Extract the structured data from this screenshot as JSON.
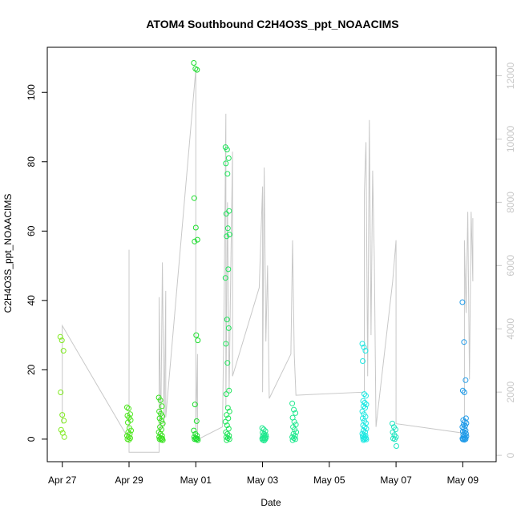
{
  "chart_data": {
    "type": "scatter",
    "title": "ATOM4 Southbound C2H4O3S_ppt_NOAACIMS",
    "xlabel": "Date",
    "ylabel": "C2H4O3S_ppt_NOAACIMS",
    "x_ticks": [
      "Apr 27",
      "Apr 29",
      "May 01",
      "May 03",
      "May 05",
      "May 07",
      "May 09"
    ],
    "x_tick_days": [
      0,
      2,
      4,
      6,
      8,
      10,
      12
    ],
    "xlim_days": [
      -0.45,
      13.0
    ],
    "ylim": [
      -6.5,
      113
    ],
    "y_ticks": [
      0,
      20,
      40,
      60,
      80,
      100
    ],
    "y2_ticks": [
      0,
      2000,
      4000,
      6000,
      8000,
      10000,
      12000
    ],
    "y2lim": [
      -200,
      12900
    ],
    "grid": false,
    "colors": {
      "altitude_line": "#c8c8c8",
      "frame": "#000000",
      "right_axis": "#c8c8c8",
      "flight_colors": [
        "#7fea1e",
        "#4ee61e",
        "#38e21e",
        "#1ede2e",
        "#1ee45a",
        "#1ee88e",
        "#1ee4c0",
        "#1ee8e2",
        "#1e9ae8"
      ]
    },
    "flights": [
      {
        "center_day": 0.0,
        "color_index": 0,
        "values": [
          29.5,
          28.5,
          25.5,
          13.5,
          7.0,
          5.3,
          2.7,
          1.8,
          0.6
        ]
      },
      {
        "center_day": 2.0,
        "color_index": 1,
        "values": [
          9.2,
          8.8,
          7.2,
          6.8,
          6.2,
          5.5,
          4.8,
          3.2,
          2.5,
          2.0,
          1.5,
          1.0,
          0.6,
          0.3,
          0.0,
          -0.2
        ]
      },
      {
        "center_day": 2.95,
        "color_index": 2,
        "values": [
          12.0,
          11.2,
          9.5,
          8.0,
          7.3,
          6.6,
          6.0,
          5.2,
          4.5,
          3.5,
          2.8,
          2.0,
          1.5,
          1.0,
          0.6,
          0.3,
          0.1,
          0.0,
          -0.2,
          -0.3
        ]
      },
      {
        "center_day": 4.0,
        "color_index": 3,
        "values": [
          108.5,
          106.8,
          106.5,
          69.5,
          61.0,
          57.5,
          57.0,
          30.0,
          28.5,
          10.0,
          5.2,
          2.5,
          1.5,
          1.0,
          0.6,
          0.3,
          0.1,
          0.0,
          -0.1,
          -0.3
        ]
      },
      {
        "center_day": 4.95,
        "color_index": 4,
        "values": [
          84.2,
          83.5,
          81.0,
          79.5,
          76.5,
          65.8,
          65.0,
          60.8,
          59.0,
          58.5,
          49.0,
          46.5,
          34.5,
          32.0,
          27.5,
          22.0,
          14.0,
          13.0,
          9.0,
          8.0,
          7.0,
          6.0,
          5.0,
          4.0,
          3.0,
          2.0,
          1.5,
          1.0,
          0.6,
          0.3,
          0.0,
          -0.3
        ]
      },
      {
        "center_day": 6.05,
        "color_index": 5,
        "values": [
          3.2,
          2.8,
          2.3,
          1.9,
          1.5,
          1.2,
          1.0,
          0.8,
          0.6,
          0.4,
          0.3,
          0.2,
          0.1,
          0.0,
          -0.2,
          -0.4
        ]
      },
      {
        "center_day": 6.95,
        "color_index": 5,
        "values": [
          10.3,
          8.5,
          7.5,
          6.2,
          5.0,
          4.2,
          3.5,
          2.8,
          2.0,
          1.5,
          1.0,
          0.6,
          0.3,
          0.0,
          -0.3
        ]
      },
      {
        "center_day": 9.05,
        "color_index": 7,
        "values": [
          27.5,
          26.5,
          25.5,
          22.5,
          13.0,
          12.5,
          11.0,
          10.5,
          10.0,
          9.5,
          9.0,
          8.0,
          7.2,
          6.5,
          6.0,
          5.2,
          4.6,
          4.0,
          3.5,
          3.0,
          2.5,
          2.0,
          1.6,
          1.2,
          1.0,
          0.8,
          0.5,
          0.3,
          0.1,
          0.0,
          -0.1,
          -0.3
        ]
      },
      {
        "center_day": 9.95,
        "color_index": 6,
        "values": [
          4.5,
          3.5,
          2.8,
          2.0,
          1.2,
          0.6,
          0.2,
          0.0,
          -2.0
        ]
      },
      {
        "center_day": 12.05,
        "color_index": 8,
        "values": [
          39.5,
          28.0,
          17.0,
          14.0,
          13.5,
          6.0,
          5.5,
          5.0,
          4.6,
          4.2,
          3.8,
          3.5,
          3.0,
          2.5,
          2.2,
          2.0,
          1.6,
          1.3,
          1.0,
          0.8,
          0.6,
          0.4,
          0.2,
          0.1,
          0.0,
          -0.1,
          -0.2
        ]
      }
    ],
    "altitude_track": [
      [
        0.0,
        4000
      ],
      [
        0.0,
        2000
      ],
      [
        0.0,
        3200
      ],
      [
        0.0,
        1000
      ],
      [
        0.0,
        4100
      ],
      [
        2.0,
        500
      ],
      [
        2.0,
        6500
      ],
      [
        2.0,
        300
      ],
      [
        2.0,
        1500
      ],
      [
        2.0,
        100
      ],
      [
        2.9,
        100
      ],
      [
        2.9,
        5000
      ],
      [
        2.95,
        800
      ],
      [
        3.0,
        6100
      ],
      [
        3.05,
        900
      ],
      [
        3.1,
        5200
      ],
      [
        3.1,
        1200
      ],
      [
        4.0,
        12200
      ],
      [
        4.0,
        800
      ],
      [
        4.05,
        3200
      ],
      [
        4.05,
        500
      ],
      [
        4.8,
        900
      ],
      [
        4.85,
        5000
      ],
      [
        4.9,
        10800
      ],
      [
        4.9,
        1500
      ],
      [
        4.95,
        8000
      ],
      [
        5.0,
        2000
      ],
      [
        5.05,
        6000
      ],
      [
        5.1,
        9600
      ],
      [
        5.1,
        2500
      ],
      [
        5.9,
        5300
      ],
      [
        6.0,
        8500
      ],
      [
        6.0,
        2000
      ],
      [
        6.05,
        9100
      ],
      [
        6.1,
        3600
      ],
      [
        6.15,
        6000
      ],
      [
        6.2,
        1800
      ],
      [
        6.85,
        3200
      ],
      [
        6.9,
        6800
      ],
      [
        6.95,
        3200
      ],
      [
        7.0,
        1900
      ],
      [
        9.05,
        2000
      ],
      [
        9.05,
        8300
      ],
      [
        9.1,
        9900
      ],
      [
        9.15,
        2500
      ],
      [
        9.2,
        10600
      ],
      [
        9.25,
        3800
      ],
      [
        9.3,
        9000
      ],
      [
        9.35,
        6200
      ],
      [
        9.4,
        900
      ],
      [
        9.9,
        5500
      ],
      [
        10.0,
        6800
      ],
      [
        10.0,
        1000
      ],
      [
        12.05,
        700
      ],
      [
        12.05,
        6800
      ],
      [
        12.1,
        4500
      ],
      [
        12.15,
        7700
      ],
      [
        12.2,
        2400
      ],
      [
        12.25,
        7700
      ],
      [
        12.3,
        5500
      ],
      [
        12.3,
        7500
      ]
    ]
  }
}
